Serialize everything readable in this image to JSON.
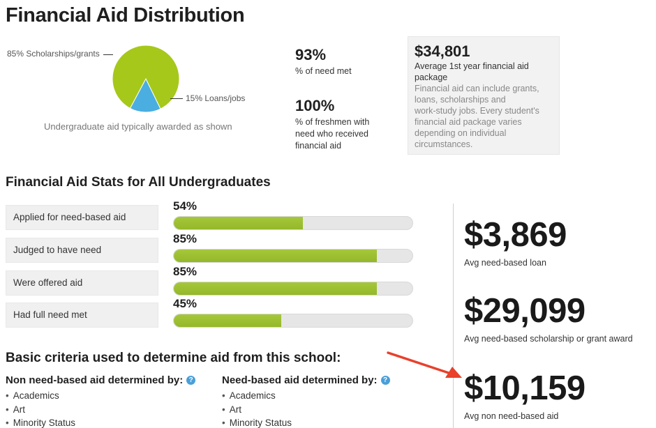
{
  "page_title": "Financial Aid Distribution",
  "pie": {
    "label_scholarships": "85% Scholarships/grants",
    "label_loans": "15% Loans/jobs",
    "caption": "Undergraduate aid typically awarded as shown",
    "slices": [
      {
        "name": "Scholarships/grants",
        "percent": 85,
        "color": "#a6c81a"
      },
      {
        "name": "Loans/jobs",
        "percent": 15,
        "color": "#4aaee0"
      }
    ]
  },
  "need_met": {
    "value": "93%",
    "label": "% of need met"
  },
  "freshmen": {
    "value": "100%",
    "label_line1": "% of freshmen with",
    "label_line2": "need who received",
    "label_line3": "financial aid"
  },
  "package": {
    "value": "$34,801",
    "label_line1": "Average 1st year financial aid",
    "label_line2": "package",
    "note_lines": [
      "Financial aid can include grants,",
      "loans, scholarships and",
      "work-study jobs. Every student's",
      "financial aid package varies",
      "depending on individual",
      "circumstances."
    ]
  },
  "stats_title": "Financial Aid Stats for All Undergraduates",
  "stats": [
    {
      "label": "Applied for need-based aid",
      "pct_text": "54%",
      "pct": 54
    },
    {
      "label": "Judged to have need",
      "pct_text": "85%",
      "pct": 85
    },
    {
      "label": "Were offered aid",
      "pct_text": "85%",
      "pct": 85
    },
    {
      "label": "Had full need met",
      "pct_text": "45%",
      "pct": 45
    }
  ],
  "amounts": [
    {
      "value": "$3,869",
      "caption": "Avg need-based loan"
    },
    {
      "value": "$29,099",
      "caption": "Avg need-based scholarship or grant award"
    },
    {
      "value": "$10,159",
      "caption": "Avg non need-based aid"
    }
  ],
  "criteria_title": "Basic criteria used to determine aid from this school:",
  "non_need": {
    "heading": "Non need-based aid determined by:",
    "items": [
      "Academics",
      "Art",
      "Minority Status"
    ]
  },
  "need": {
    "heading": "Need-based aid determined by:",
    "items": [
      "Academics",
      "Art",
      "Minority Status"
    ]
  },
  "colors": {
    "bar_fill": "#94b829",
    "arrow": "#e8412c",
    "help_icon": "#4a9fd8"
  },
  "icons": {
    "help": "question-mark-circle-icon",
    "annotation": "red-arrow-icon"
  }
}
